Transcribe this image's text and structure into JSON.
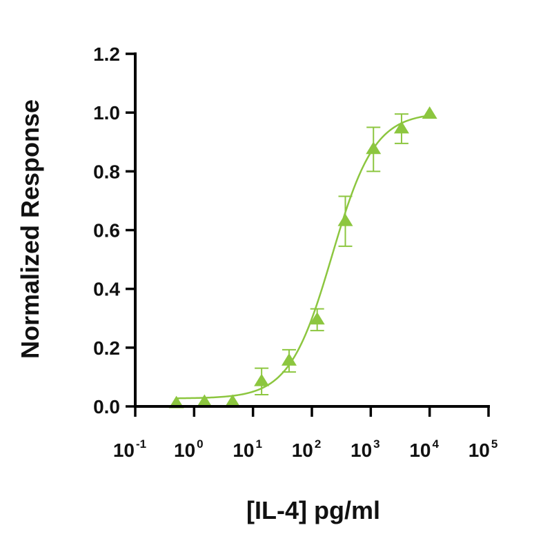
{
  "chart_data": {
    "type": "scatter",
    "title": "",
    "xlabel": "[IL-4] pg/ml",
    "ylabel": "Normalized Response",
    "xscale": "log",
    "xlim": [
      0.1,
      100000
    ],
    "ylim": [
      0,
      1.2
    ],
    "x_ticks": [
      {
        "base": "10",
        "exp": "-1"
      },
      {
        "base": "10",
        "exp": "0"
      },
      {
        "base": "10",
        "exp": "1"
      },
      {
        "base": "10",
        "exp": "2"
      },
      {
        "base": "10",
        "exp": "3"
      },
      {
        "base": "10",
        "exp": "4"
      },
      {
        "base": "10",
        "exp": "5"
      }
    ],
    "y_ticks": [
      "0.0",
      "0.2",
      "0.4",
      "0.6",
      "0.8",
      "1.0",
      "1.2"
    ],
    "series": [
      {
        "marker": "triangle",
        "color": "#8cc63f",
        "x": [
          0.5,
          1.5,
          4.5,
          14,
          41,
          123,
          370,
          1111,
          3333,
          10000
        ],
        "y": [
          0.01,
          0.015,
          0.015,
          0.085,
          0.155,
          0.295,
          0.63,
          0.875,
          0.945,
          0.995
        ],
        "error": [
          0,
          0,
          0,
          0.045,
          0.038,
          0.037,
          0.085,
          0.075,
          0.05,
          0
        ]
      }
    ],
    "fit": {
      "type": "4PL",
      "bottom": 0.027,
      "top": 1.0,
      "ec50": 220,
      "hill": 1.2
    },
    "grid": false,
    "legend": "none"
  }
}
